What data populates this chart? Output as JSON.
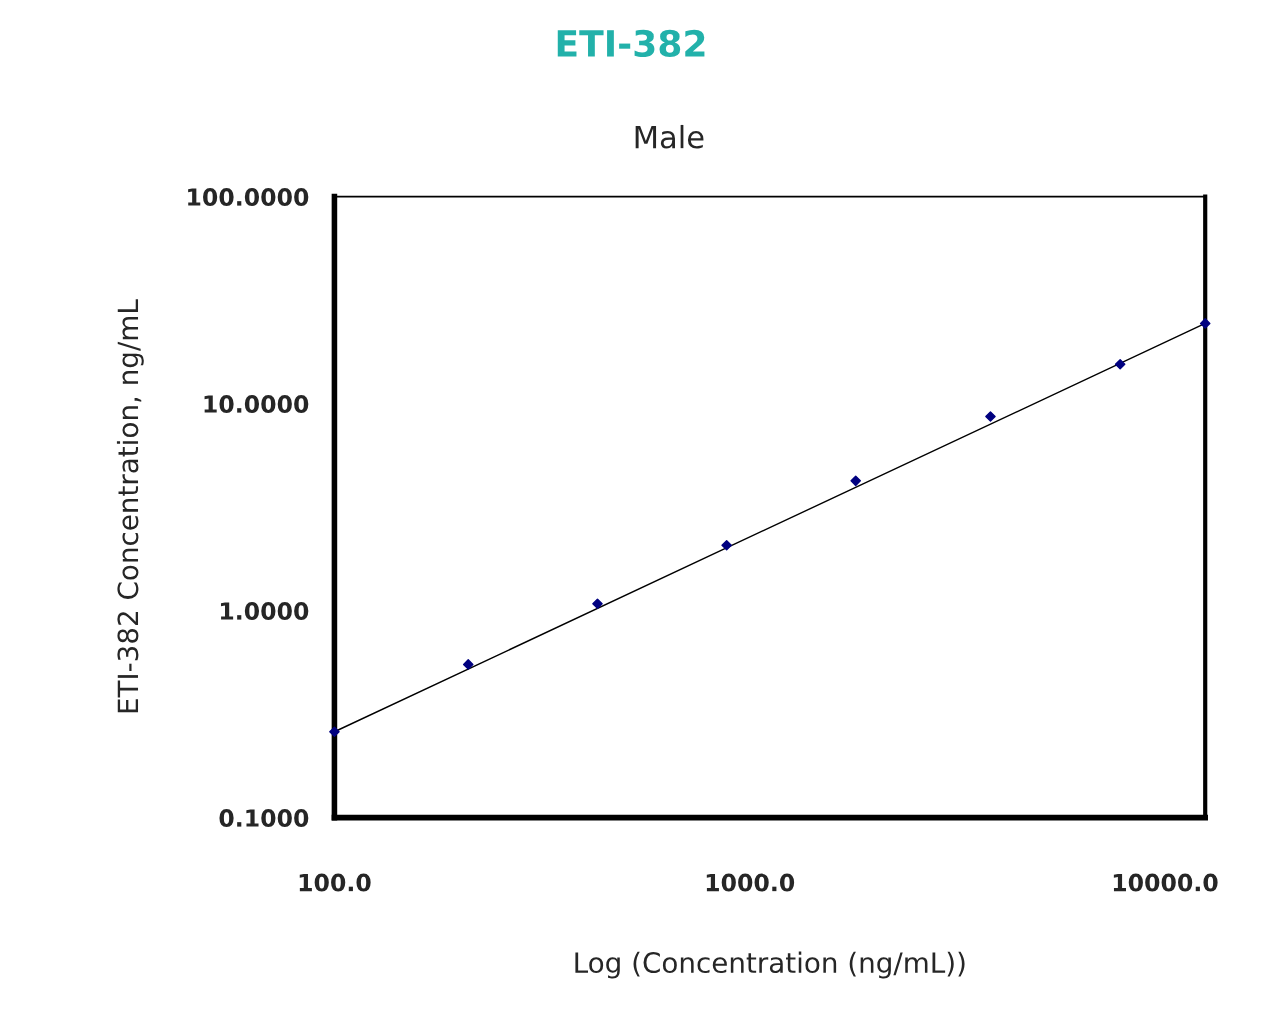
{
  "chart_data": {
    "type": "line",
    "title": "ETI-382",
    "subtitle": "Male",
    "xlabel": "Log (Concentration (ng/mL))",
    "ylabel": "ETI-382 Concentration, ng/mL",
    "log": "xy",
    "xlim": [
      100,
      12500
    ],
    "ylim": [
      0.1,
      100
    ],
    "xticks": [
      {
        "value": 100,
        "label": "100.0"
      },
      {
        "value": 1000,
        "label": "1000.0"
      },
      {
        "value": 10000,
        "label": "10000.0"
      }
    ],
    "yticks": [
      {
        "value": 0.1,
        "label": "0.1000"
      },
      {
        "value": 1,
        "label": "1.0000"
      },
      {
        "value": 10,
        "label": "10.0000"
      },
      {
        "value": 100,
        "label": "100.0000"
      }
    ],
    "grid": false,
    "legend": false,
    "marker": "diamond",
    "series": [
      {
        "color": "#000000",
        "x": [
          100,
          12500
        ],
        "values": [
          0.26,
          24.4
        ],
        "marker": "none",
        "line_style": "solid"
      },
      {
        "type": "scatter",
        "color": "#000080",
        "x": [
          100,
          210,
          430,
          880,
          1800,
          3800,
          7800,
          12500
        ],
        "values": [
          0.26,
          0.55,
          1.08,
          2.07,
          4.24,
          8.67,
          15.5,
          24.4
        ]
      }
    ]
  }
}
